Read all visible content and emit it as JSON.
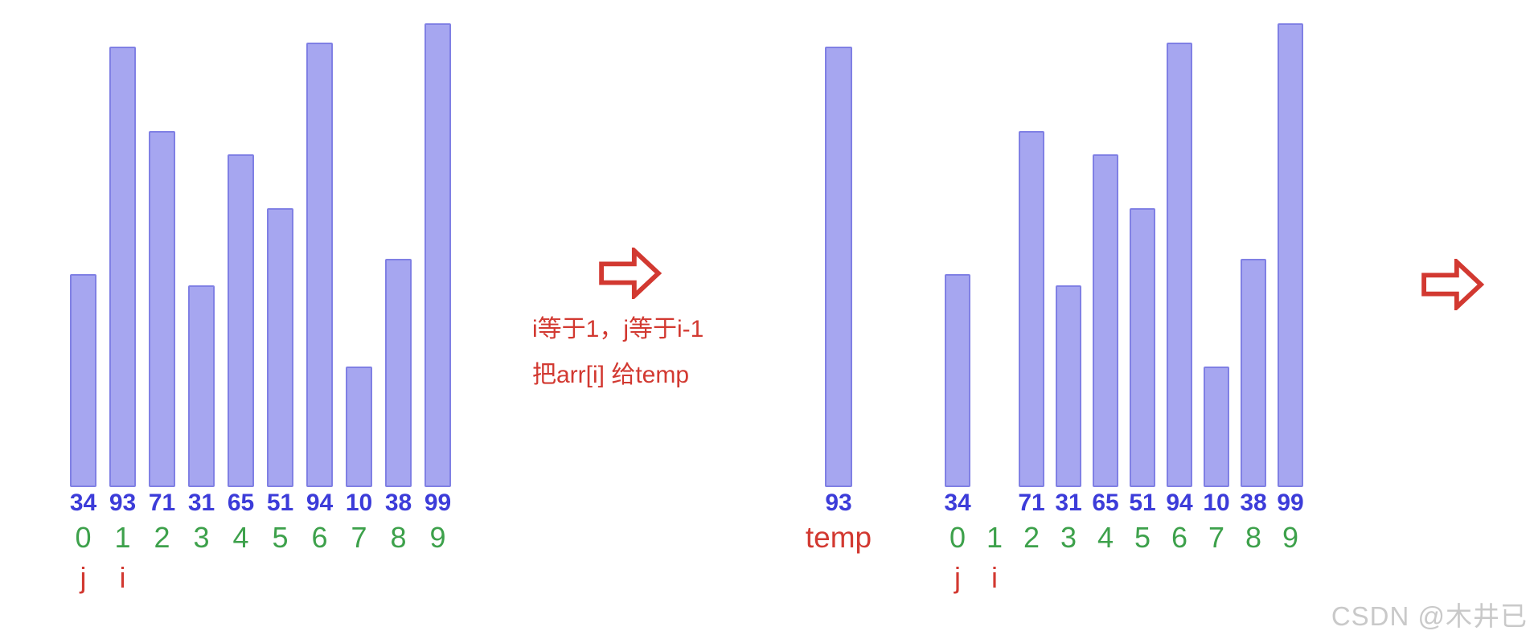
{
  "colors": {
    "bar_fill": "#a6a6f0",
    "bar_border": "#8080e4",
    "value_text": "#3c3cd9",
    "index_text": "#3da14b",
    "accent_red": "#d23931",
    "watermark_text": "#c9c9c9"
  },
  "chart_data": [
    {
      "id": "array-before",
      "type": "bar",
      "description": "array state before step, values with array indices",
      "values": [
        34,
        93,
        71,
        31,
        65,
        51,
        94,
        10,
        38,
        99
      ],
      "indices": [
        "0",
        "1",
        "2",
        "3",
        "4",
        "5",
        "6",
        "7",
        "8",
        "9"
      ],
      "markers": [
        "j",
        "i",
        "",
        "",
        "",
        "",
        "",
        "",
        "",
        ""
      ]
    },
    {
      "id": "temp-var",
      "type": "bar",
      "description": "temp variable holding extracted value",
      "values": [
        93
      ],
      "caption": "temp"
    },
    {
      "id": "array-after",
      "type": "bar",
      "description": "array state after arr[i] moved to temp, slot 1 empty",
      "values": [
        34,
        null,
        71,
        31,
        65,
        51,
        94,
        10,
        38,
        99
      ],
      "indices": [
        "0",
        "1",
        "2",
        "3",
        "4",
        "5",
        "6",
        "7",
        "8",
        "9"
      ],
      "markers": [
        "j",
        "i",
        "",
        "",
        "",
        "",
        "",
        "",
        "",
        ""
      ]
    }
  ],
  "annotation": {
    "line1": "i等于1，j等于i-1",
    "line2": "把arr[i] 给temp"
  },
  "icons": {
    "step_arrow": "right-arrow"
  },
  "watermark": "CSDN @木井已"
}
